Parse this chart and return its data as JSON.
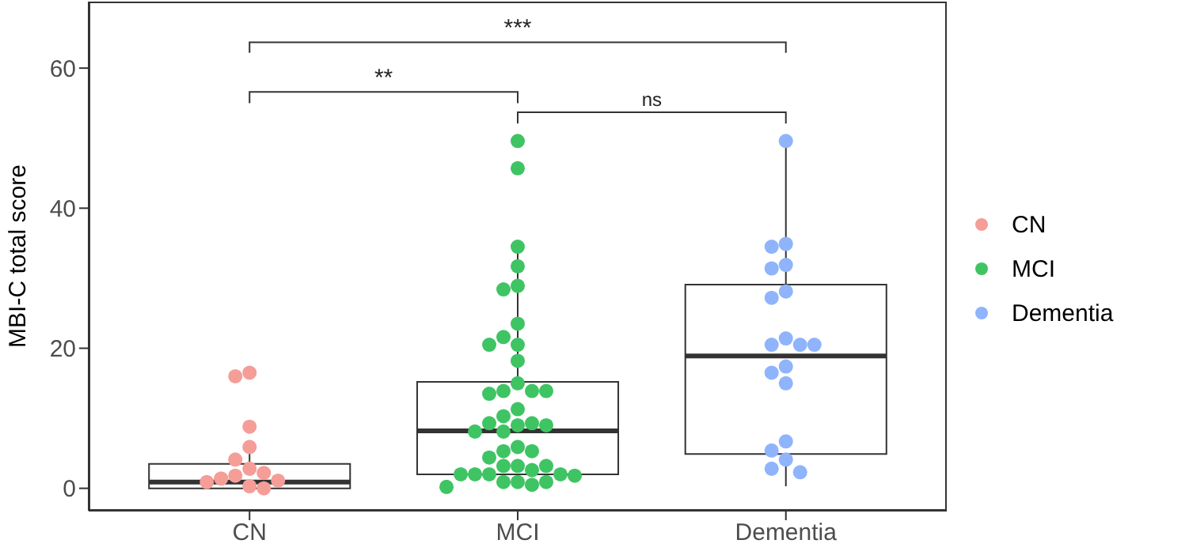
{
  "chart_data": {
    "type": "box",
    "ylabel": "MBI-C total score",
    "categories": [
      "CN",
      "MCI",
      "Dementia"
    ],
    "boxes": [
      {
        "low": 0,
        "q1": 0,
        "median": 0.9,
        "q3": 3.5,
        "high": 6
      },
      {
        "low": 0.2,
        "q1": 2,
        "median": 8.2,
        "q3": 15.2,
        "high": 34.8
      },
      {
        "low": 0.3,
        "q1": 4.9,
        "median": 18.9,
        "q3": 29.1,
        "high": 49.6
      }
    ],
    "series": [
      {
        "name": "CN",
        "type": "scatter",
        "color": "#f59d97",
        "x": [
          "CN",
          "CN",
          "CN",
          "CN",
          "CN",
          "CN",
          "CN",
          "CN",
          "CN",
          "CN",
          "CN",
          "CN",
          "CN"
        ],
        "values": [
          16.5,
          16,
          8.8,
          5.9,
          4.1,
          2.8,
          2.2,
          1.8,
          1.4,
          1.1,
          0.9,
          0.3,
          0
        ]
      },
      {
        "name": "MCI",
        "type": "scatter",
        "color": "#3fc463",
        "x": [
          "MCI",
          "MCI",
          "MCI",
          "MCI",
          "MCI",
          "MCI",
          "MCI",
          "MCI",
          "MCI",
          "MCI",
          "MCI",
          "MCI",
          "MCI",
          "MCI",
          "MCI",
          "MCI",
          "MCI",
          "MCI",
          "MCI",
          "MCI",
          "MCI",
          "MCI",
          "MCI",
          "MCI",
          "MCI",
          "MCI",
          "MCI",
          "MCI",
          "MCI",
          "MCI",
          "MCI",
          "MCI",
          "MCI",
          "MCI",
          "MCI",
          "MCI",
          "MCI",
          "MCI",
          "MCI",
          "MCI",
          "MCI",
          "MCI"
        ],
        "values": [
          49.6,
          45.7,
          34.5,
          31.7,
          28.9,
          28.4,
          23.5,
          21.6,
          20.5,
          20.5,
          18.2,
          15,
          13.9,
          13.9,
          13.9,
          13.5,
          11.3,
          10.3,
          9.3,
          9.3,
          9,
          9,
          8.1,
          8.1,
          5.9,
          5.3,
          5.3,
          4.4,
          3.2,
          3.2,
          3.2,
          2.6,
          2,
          2,
          2,
          2,
          1.8,
          0.9,
          0.9,
          0.9,
          0.5,
          0.2
        ]
      },
      {
        "name": "Dementia",
        "type": "scatter",
        "color": "#8fb4fc",
        "x": [
          "Dementia",
          "Dementia",
          "Dementia",
          "Dementia",
          "Dementia",
          "Dementia",
          "Dementia",
          "Dementia",
          "Dementia",
          "Dementia",
          "Dementia",
          "Dementia",
          "Dementia",
          "Dementia",
          "Dementia",
          "Dementia",
          "Dementia",
          "Dementia",
          "Dementia"
        ],
        "values": [
          49.6,
          34.9,
          34.5,
          31.9,
          31.4,
          28.1,
          27.2,
          21.4,
          20.5,
          20.5,
          20.5,
          17.4,
          16.5,
          15,
          6.7,
          5.4,
          4.1,
          2.8,
          2.3
        ]
      }
    ],
    "ylim": [
      -3.2,
      69.5
    ],
    "yticks": [
      0,
      20,
      40,
      60
    ],
    "grid": false,
    "legend": "right",
    "marker": "circle",
    "annotations": [
      "**",
      "***",
      "ns"
    ]
  }
}
